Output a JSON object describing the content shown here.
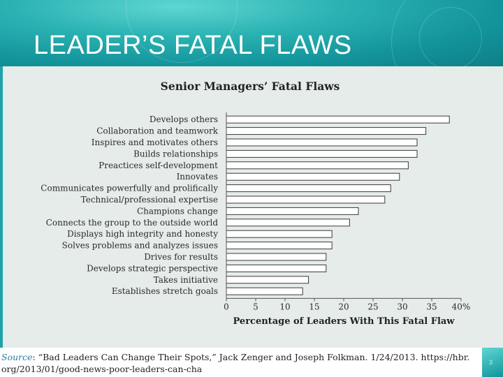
{
  "slide": {
    "title": "LEADER’S FATAL FLAWS",
    "page_number": "3"
  },
  "source": {
    "label": "Source",
    "line1": ": “Bad Leaders Can Change Their Spots,” Jack Zenger and Joseph Folkman. 1/24/2013. https://hbr.",
    "line2": "org/2013/01/good-news-poor-leaders-can-cha"
  },
  "colors": {
    "header": "#1fa3a6",
    "panel": "#e6ece9",
    "bar_outline": "#3a3a3a"
  },
  "chart_data": {
    "type": "bar",
    "orientation": "horizontal",
    "title": "Senior Managers’ Fatal Flaws",
    "xlabel": "Percentage of Leaders With This Fatal Flaw",
    "ylabel": "",
    "xlim": [
      0,
      40
    ],
    "x_ticks": [
      "0",
      "5",
      "10",
      "15",
      "20",
      "25",
      "30",
      "35",
      "40%"
    ],
    "grid": false,
    "categories": [
      "Develops others",
      "Collaboration and teamwork",
      "Inspires and motivates others",
      "Builds relationships",
      "Preactices self-development",
      "Innovates",
      "Communicates powerfully and prolifically",
      "Technical/professional expertise",
      "Champions change",
      "Connects the group to the outside world",
      "Displays high integrity and honesty",
      "Solves problems and analyzes issues",
      "Drives for results",
      "Develops strategic perspective",
      "Takes initiative",
      "Establishes stretch goals"
    ],
    "values": [
      38,
      34,
      32.5,
      32.5,
      31,
      29.5,
      28,
      27,
      22.5,
      21,
      18,
      18,
      17,
      17,
      14,
      13
    ]
  }
}
